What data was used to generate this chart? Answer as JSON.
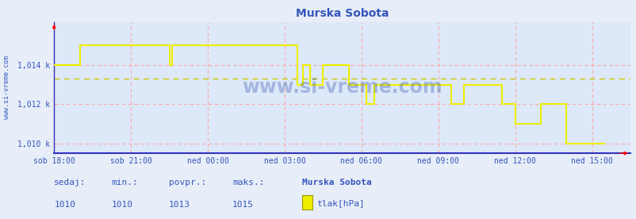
{
  "title": "Murska Sobota",
  "bg_color": "#e8eef8",
  "plot_bg_color": "#dde8f8",
  "line_color": "#eeee00",
  "avg_line_color": "#cccc00",
  "grid_color": "#ffaaaa",
  "axis_color": "#3333bb",
  "text_color": "#3355bb",
  "ylim": [
    1009.5,
    1016.2
  ],
  "yticks": [
    1010,
    1012,
    1014
  ],
  "ytick_labels": [
    "1,010 k",
    "1,012 k",
    "1,014 k"
  ],
  "xlabel_ticks": [
    "sob 18:00",
    "sob 21:00",
    "ned 00:00",
    "ned 03:00",
    "ned 06:00",
    "ned 09:00",
    "ned 12:00",
    "ned 15:00"
  ],
  "x_tick_positions": [
    0,
    3,
    6,
    9,
    12,
    15,
    18,
    21
  ],
  "x_max": 22.5,
  "avg_value": 1013.3,
  "sedaj": "1010",
  "min_val": "1010",
  "povpr": "1013",
  "maks": "1015",
  "legend_label": "tlak[hPa]",
  "station_name": "Murska Sobota",
  "watermark": "www.si-vreme.com",
  "data_x": [
    0.0,
    1.0,
    1.0,
    4.5,
    4.5,
    4.6,
    4.6,
    9.5,
    9.5,
    9.7,
    9.7,
    10.0,
    10.0,
    10.5,
    10.5,
    11.5,
    11.5,
    12.2,
    12.2,
    12.5,
    12.5,
    15.5,
    15.5,
    16.0,
    16.0,
    17.5,
    17.5,
    18.0,
    18.0,
    19.0,
    19.0,
    20.0,
    20.0,
    21.5
  ],
  "data_y": [
    1014,
    1014,
    1015,
    1015,
    1014,
    1014,
    1015,
    1015,
    1013,
    1013,
    1014,
    1014,
    1013,
    1013,
    1014,
    1014,
    1013,
    1013,
    1012,
    1012,
    1013,
    1013,
    1012,
    1012,
    1013,
    1013,
    1012,
    1012,
    1011,
    1011,
    1012,
    1012,
    1010,
    1010
  ]
}
